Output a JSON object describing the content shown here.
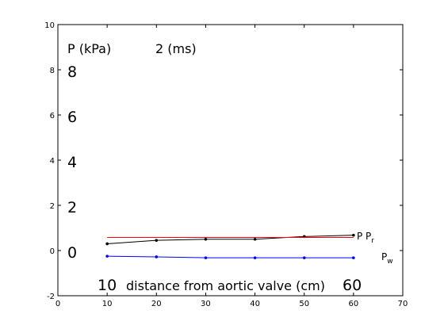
{
  "chart_data": {
    "type": "line",
    "xlim": [
      0,
      70
    ],
    "ylim": [
      -2,
      10
    ],
    "xticks": [
      "0",
      "10",
      "20",
      "30",
      "40",
      "50",
      "60",
      "70"
    ],
    "yticks": [
      "-2",
      "0",
      "2",
      "4",
      "6",
      "8",
      "10"
    ],
    "grid": false,
    "x": [
      10,
      20,
      30,
      40,
      50,
      60
    ],
    "series": [
      {
        "name": "P",
        "color": "#000000",
        "marker": "dot",
        "values": [
          0.3,
          0.45,
          0.5,
          0.5,
          0.62,
          0.68
        ]
      },
      {
        "name": "Pr",
        "color": "#ff0000",
        "marker": "none",
        "values": [
          0.58,
          0.58,
          0.58,
          0.58,
          0.58,
          0.58
        ]
      },
      {
        "name": "Pw",
        "color": "#0000ff",
        "marker": "dot",
        "values": [
          -0.25,
          -0.28,
          -0.32,
          -0.32,
          -0.32,
          -0.32
        ]
      }
    ],
    "annotations": {
      "ylabel": "P (kPa)",
      "time": "2 (ms)",
      "y_scale": [
        "8",
        "6",
        "4",
        "2",
        "0"
      ],
      "x_start": "10",
      "xlabel": "distance from aortic valve (cm)",
      "x_end": "60",
      "label_p": "P",
      "label_pr_main": "P",
      "label_pr_sub": "r",
      "label_pw_main": "P",
      "label_pw_sub": "w"
    }
  }
}
